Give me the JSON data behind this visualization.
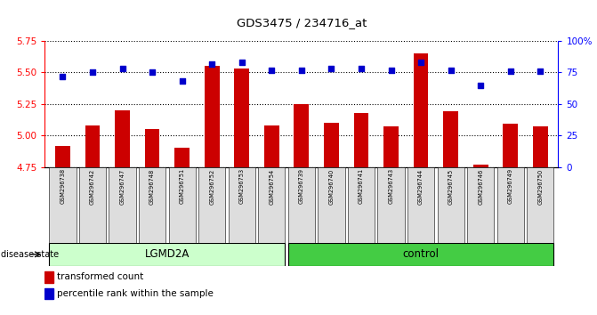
{
  "title": "GDS3475 / 234716_at",
  "samples": [
    "GSM296738",
    "GSM296742",
    "GSM296747",
    "GSM296748",
    "GSM296751",
    "GSM296752",
    "GSM296753",
    "GSM296754",
    "GSM296739",
    "GSM296740",
    "GSM296741",
    "GSM296743",
    "GSM296744",
    "GSM296745",
    "GSM296746",
    "GSM296749",
    "GSM296750"
  ],
  "transformed_count": [
    4.92,
    5.08,
    5.2,
    5.05,
    4.9,
    5.55,
    5.53,
    5.08,
    5.25,
    5.1,
    5.18,
    5.07,
    5.65,
    5.19,
    4.77,
    5.09,
    5.07
  ],
  "percentile_rank": [
    72,
    75,
    78,
    75,
    68,
    82,
    83,
    77,
    77,
    78,
    78,
    77,
    83,
    77,
    65,
    76,
    76
  ],
  "lgmd2a_count": 8,
  "control_count": 9,
  "y_min": 4.75,
  "y_max": 5.75,
  "y_ticks": [
    4.75,
    5.0,
    5.25,
    5.5,
    5.75
  ],
  "y2_ticks": [
    0,
    25,
    50,
    75,
    100
  ],
  "bar_color": "#CC0000",
  "dot_color": "#0000CC",
  "lgmd2a_color": "#CCFFCC",
  "control_color": "#44CC44",
  "tick_bg_color": "#DDDDDD",
  "background_color": "#FFFFFF"
}
